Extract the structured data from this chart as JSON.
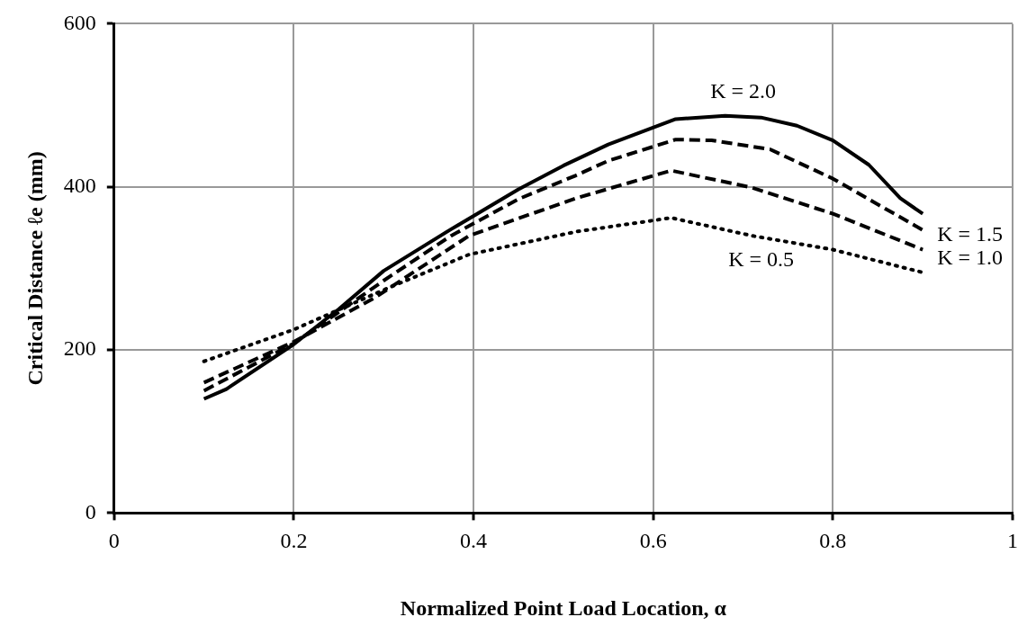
{
  "chart_data": {
    "type": "line",
    "xlabel": "Normalized Point Load Location, α",
    "ylabel": "Critical Distance ℓe (mm)",
    "xlim": [
      0,
      1
    ],
    "xticks": [
      0,
      0.2,
      0.4,
      0.6,
      0.8,
      1
    ],
    "ylim": [
      0,
      600
    ],
    "yticks": [
      0,
      200,
      400,
      600
    ],
    "grid": true,
    "legend": false,
    "marker": "none",
    "series": [
      {
        "name": "K = 2.0",
        "color": "#000000",
        "line_style": "solid",
        "x": [
          0.1,
          0.125,
          0.2,
          0.25,
          0.3,
          0.375,
          0.45,
          0.5,
          0.55,
          0.625,
          0.68,
          0.72,
          0.76,
          0.8,
          0.84,
          0.875,
          0.9
        ],
        "values": [
          140,
          152,
          207,
          250,
          297,
          348,
          397,
          426,
          452,
          483,
          487,
          485,
          475,
          457,
          427,
          386,
          367
        ]
      },
      {
        "name": "K = 1.5",
        "color": "#000000",
        "line_style": "dashed",
        "x": [
          0.1,
          0.2,
          0.3,
          0.375,
          0.45,
          0.514,
          0.55,
          0.625,
          0.665,
          0.73,
          0.8,
          0.9
        ],
        "values": [
          150,
          208,
          285,
          340,
          385,
          414,
          432,
          458,
          457,
          446,
          410,
          347
        ]
      },
      {
        "name": "K = 1.0",
        "color": "#000000",
        "line_style": "dashed",
        "x": [
          0.1,
          0.2,
          0.29,
          0.395,
          0.514,
          0.62,
          0.71,
          0.8,
          0.9
        ],
        "values": [
          160,
          210,
          264,
          340,
          386,
          420,
          399,
          367,
          323
        ]
      },
      {
        "name": "K = 0.5",
        "color": "#000000",
        "line_style": "dotted",
        "x": [
          0.1,
          0.2,
          0.305,
          0.395,
          0.514,
          0.62,
          0.71,
          0.8,
          0.9
        ],
        "values": [
          186,
          225,
          276,
          317,
          345,
          362,
          340,
          323,
          295
        ]
      }
    ]
  }
}
